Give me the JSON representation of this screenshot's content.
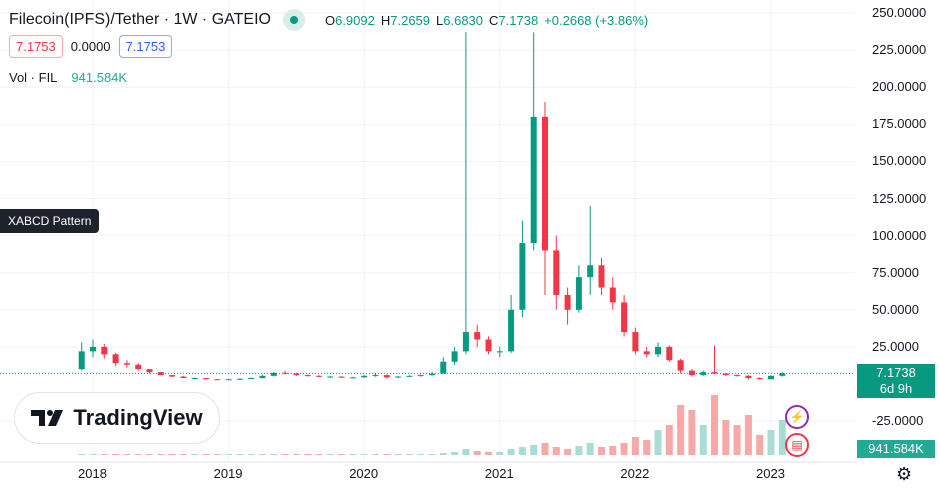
{
  "header": {
    "symbol": "Filecoin(IPFS)/Tether · 1W · GATEIO",
    "o_label": "O",
    "open": "6.9092",
    "h_label": "H",
    "high": "7.2659",
    "l_label": "L",
    "low": "6.6830",
    "c_label": "C",
    "close": "7.1738",
    "change": "+0.2668 (+3.86%)"
  },
  "quote": {
    "sell": "7.1753",
    "spread": "0.0000",
    "buy": "7.1753"
  },
  "volume": {
    "label": "Vol · FIL",
    "value": "941.584K"
  },
  "pattern_label": "XABCD Pattern",
  "logo": "TradingView",
  "price_badge": {
    "price": "7.1738",
    "countdown": "6d 9h"
  },
  "volume_badge": "941.584K",
  "colors": {
    "up": "#089981",
    "down": "#f23645",
    "up_vol": "#a9dcd3",
    "down_vol": "#f7a9a7"
  },
  "icons": [
    "lightning-event-icon",
    "us-flag-event-icon",
    "gear-icon"
  ],
  "chart_data": {
    "type": "candlestick",
    "interval": "1W",
    "y_ticks": [
      "250.0000",
      "225.0000",
      "200.0000",
      "175.0000",
      "150.0000",
      "125.0000",
      "100.0000",
      "75.0000",
      "50.0000",
      "25.0000",
      "-25.0000"
    ],
    "x_ticks": [
      "2018",
      "2019",
      "2020",
      "2021",
      "2022",
      "2023"
    ],
    "ylim": [
      -50,
      250
    ],
    "last_price": 7.1738,
    "candles": [
      [
        "2017-12",
        10,
        28,
        9,
        22,
        0.6
      ],
      [
        "2018-01",
        22,
        30,
        18,
        25,
        0.8
      ],
      [
        "2018-02",
        25,
        27,
        17,
        20,
        0.5
      ],
      [
        "2018-03",
        20,
        21,
        12,
        14,
        0.4
      ],
      [
        "2018-04",
        14,
        16,
        11,
        13,
        0.4
      ],
      [
        "2018-05",
        13,
        14,
        9,
        10,
        0.3
      ],
      [
        "2018-06",
        10,
        10,
        7,
        8,
        0.3
      ],
      [
        "2018-07",
        8,
        8,
        6,
        6,
        0.3
      ],
      [
        "2018-08",
        6,
        6,
        4.5,
        5,
        0.3
      ],
      [
        "2018-09",
        5,
        5.5,
        4,
        4,
        0.3
      ],
      [
        "2018-10",
        4,
        4.5,
        3.5,
        4,
        0.3
      ],
      [
        "2018-11",
        4,
        4,
        3,
        3.2,
        0.3
      ],
      [
        "2018-12",
        3.2,
        3.5,
        2.8,
        3,
        0.3
      ],
      [
        "2019-01",
        3,
        3.5,
        2.8,
        3.2,
        0.3
      ],
      [
        "2019-02",
        3.2,
        3.8,
        3,
        3.5,
        0.3
      ],
      [
        "2019-03",
        3.5,
        4.5,
        3.2,
        4,
        0.3
      ],
      [
        "2019-04",
        4,
        6,
        3.8,
        5.5,
        0.4
      ],
      [
        "2019-05",
        5.5,
        8,
        5,
        7.5,
        0.5
      ],
      [
        "2019-06",
        7.5,
        9,
        6.5,
        7,
        0.5
      ],
      [
        "2019-07",
        7,
        7.5,
        5.5,
        6,
        0.4
      ],
      [
        "2019-08",
        6,
        6.5,
        5,
        5.5,
        0.3
      ],
      [
        "2019-09",
        5.5,
        6,
        4.5,
        5,
        0.3
      ],
      [
        "2019-10",
        5,
        5.5,
        4.3,
        5,
        0.3
      ],
      [
        "2019-11",
        5,
        5.2,
        4,
        4.3,
        0.3
      ],
      [
        "2019-12",
        4.3,
        4.8,
        3.8,
        4.5,
        0.3
      ],
      [
        "2020-01",
        4.5,
        6,
        4.2,
        5.5,
        0.4
      ],
      [
        "2020-02",
        5.5,
        7,
        5,
        6,
        0.4
      ],
      [
        "2020-03",
        6,
        6.5,
        3.5,
        4.5,
        0.5
      ],
      [
        "2020-04",
        4.5,
        5.5,
        4.2,
        5,
        0.4
      ],
      [
        "2020-05",
        5,
        6,
        4.6,
        5.5,
        0.4
      ],
      [
        "2020-06",
        5.5,
        6.5,
        5,
        6,
        0.5
      ],
      [
        "2020-07",
        6,
        8,
        5.5,
        7,
        1
      ],
      [
        "2020-08",
        7,
        18,
        7,
        15,
        2
      ],
      [
        "2020-09",
        15,
        25,
        13,
        22,
        3
      ],
      [
        "2020-10",
        22,
        237,
        20,
        35,
        6
      ],
      [
        "2020-11",
        35,
        40,
        25,
        30,
        4
      ],
      [
        "2020-12",
        30,
        32,
        20,
        22,
        3
      ],
      [
        "2021-01",
        22,
        25,
        18,
        22,
        3
      ],
      [
        "2021-02",
        22,
        60,
        21,
        50,
        6
      ],
      [
        "2021-03",
        50,
        110,
        45,
        95,
        8
      ],
      [
        "2021-04",
        95,
        237,
        90,
        180,
        10
      ],
      [
        "2021-05",
        180,
        190,
        60,
        90,
        12
      ],
      [
        "2021-06",
        90,
        100,
        50,
        60,
        8
      ],
      [
        "2021-07",
        60,
        65,
        40,
        50,
        6
      ],
      [
        "2021-08",
        50,
        80,
        48,
        72,
        9
      ],
      [
        "2021-09",
        72,
        120,
        60,
        80,
        12
      ],
      [
        "2021-10",
        80,
        85,
        60,
        65,
        8
      ],
      [
        "2021-11",
        65,
        72,
        50,
        55,
        9
      ],
      [
        "2021-12",
        55,
        60,
        32,
        35,
        12
      ],
      [
        "2022-01",
        35,
        38,
        20,
        22,
        18
      ],
      [
        "2022-02",
        22,
        25,
        18,
        20,
        15
      ],
      [
        "2022-03",
        20,
        28,
        18,
        25,
        25
      ],
      [
        "2022-04",
        25,
        26,
        15,
        16,
        30
      ],
      [
        "2022-05",
        16,
        17,
        7,
        9,
        50
      ],
      [
        "2022-06",
        9,
        10,
        5,
        6,
        45
      ],
      [
        "2022-07",
        6,
        9,
        5.5,
        8,
        30
      ],
      [
        "2022-08",
        8,
        26,
        6.5,
        7,
        60
      ],
      [
        "2022-09",
        7,
        7.5,
        5.5,
        6,
        35
      ],
      [
        "2022-10",
        6,
        6.5,
        5,
        5.5,
        30
      ],
      [
        "2022-11",
        5.5,
        6,
        3,
        4,
        40
      ],
      [
        "2022-12",
        4,
        4.5,
        3,
        3.2,
        20
      ],
      [
        "2023-01",
        3.2,
        6,
        3,
        5.5,
        25
      ],
      [
        "2023-02",
        5.5,
        8,
        5,
        7.17,
        35
      ]
    ]
  }
}
